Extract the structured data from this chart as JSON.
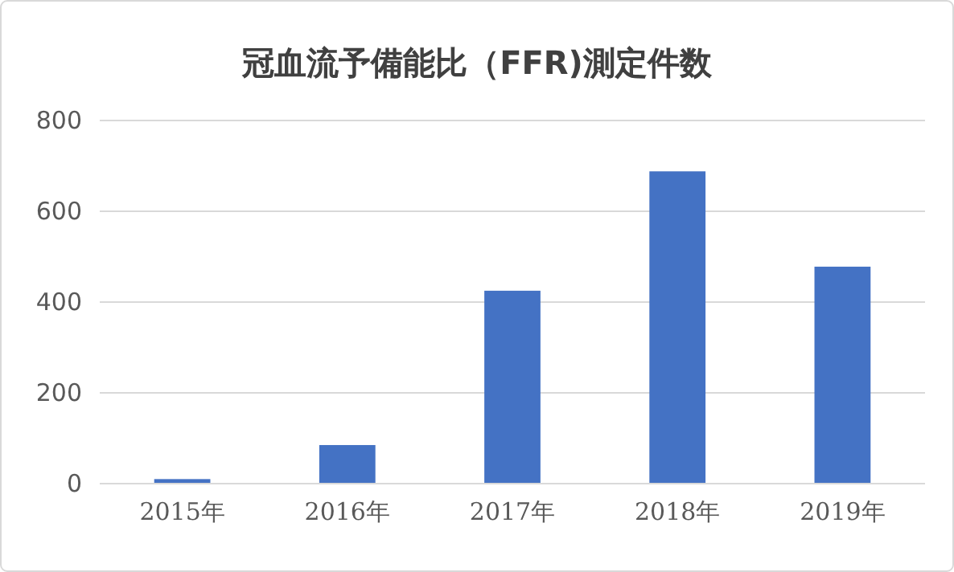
{
  "chart_data": {
    "type": "bar",
    "title": "冠血流予備能比（FFR)測定件数",
    "categories": [
      "2015年",
      "2016年",
      "2017年",
      "2018年",
      "2019年"
    ],
    "values": [
      10,
      85,
      425,
      688,
      478
    ],
    "color": "#4472c4",
    "ylim": [
      0,
      800
    ],
    "yticks": [
      0,
      200,
      400,
      600,
      800
    ],
    "grid": "y"
  }
}
